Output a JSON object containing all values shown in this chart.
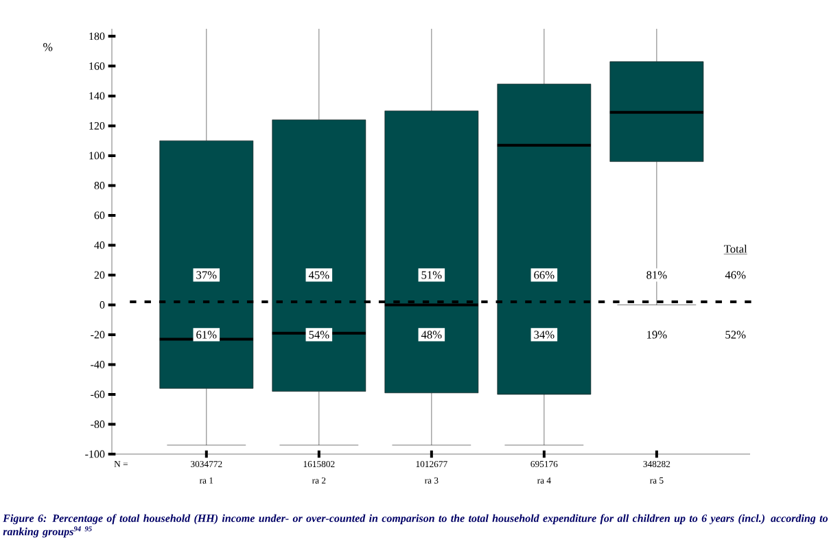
{
  "chart_data": {
    "type": "box",
    "title": "Figure 6: Percentage of total household (HH) income under- or over-counted in comparison to the total household expenditure for all children up to 6 years (incl.) according to ranking groups$^{94 95}$",
    "ylabel": "%",
    "categories": [
      "ra 1",
      "ra 2",
      "ra 3",
      "ra 4",
      "ra 5"
    ],
    "boxes": [
      {
        "low": -94,
        "q1": -56,
        "median": -23,
        "q3": 110,
        "high": 185
      },
      {
        "low": -94,
        "q1": -58,
        "median": -19,
        "q3": 124,
        "high": 185
      },
      {
        "low": -94,
        "q1": -59,
        "median": 0,
        "q3": 130,
        "high": 185
      },
      {
        "low": -94,
        "q1": -60,
        "median": 107,
        "q3": 148,
        "high": 185
      },
      {
        "low": 0,
        "q1": 96,
        "median": 129,
        "q3": 163,
        "high": 185
      }
    ],
    "color": "#004c4c",
    "ylim": [
      -100,
      185
    ],
    "yticks": [
      -100,
      -80,
      -60,
      -40,
      -20,
      0,
      20,
      40,
      60,
      80,
      100,
      120,
      140,
      160,
      180
    ],
    "ref_lines": [
      {
        "axis": "y",
        "value": 2,
        "line_style": "dashed"
      }
    ],
    "annotations": [
      "N =",
      "3034772",
      "1615802",
      "1012677",
      "695176",
      "348282",
      "37%",
      "45%",
      "51%",
      "66%",
      "81%",
      "61%",
      "54%",
      "48%",
      "34%",
      "19%",
      "Total",
      "46%",
      "52%"
    ],
    "grid": false
  }
}
